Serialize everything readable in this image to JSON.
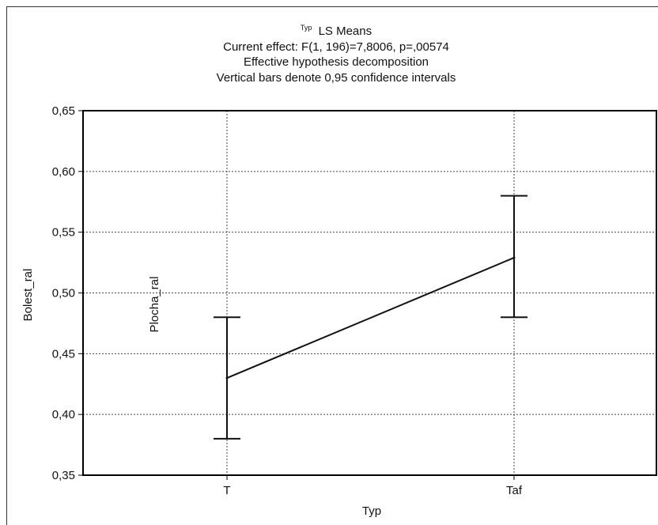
{
  "chart_data": {
    "type": "line",
    "title_prefix": "Typ",
    "title": "LS Means",
    "subtitle_lines": [
      "Current effect: F(1, 196)=7,8006, p=,00574",
      "Effective hypothesis decomposition",
      "Vertical bars denote 0,95 confidence intervals"
    ],
    "xlabel": "Typ",
    "ylabel": "Bolest_ral",
    "categories": [
      "T",
      "Taf"
    ],
    "series": [
      {
        "values": [
          0.43,
          0.529
        ],
        "ci_low": [
          0.38,
          0.48
        ],
        "ci_high": [
          0.48,
          0.58
        ]
      }
    ],
    "ylim": [
      0.35,
      0.65
    ],
    "yticks": [
      0.35,
      0.4,
      0.45,
      0.5,
      0.55,
      0.6,
      0.65
    ],
    "ytick_labels": [
      "0,35",
      "0,40",
      "0,45",
      "0,50",
      "0,55",
      "0,60",
      "0,65"
    ],
    "annotation": "Plocha_ral",
    "grid": true,
    "line_color": "#111111",
    "grid_color": "#444444"
  }
}
